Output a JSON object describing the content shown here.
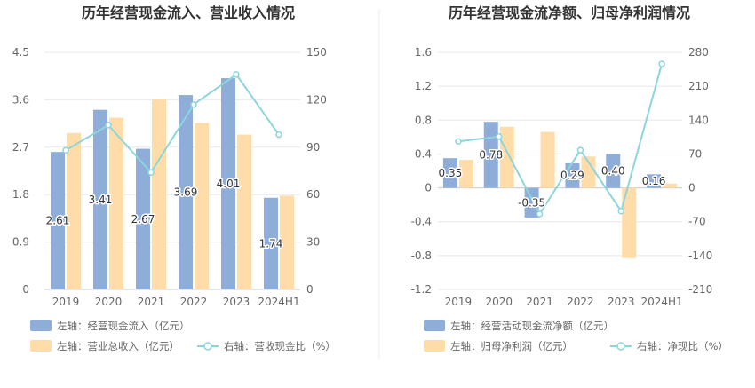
{
  "colors": {
    "bar1": "#8eadd9",
    "bar2": "#ffdca8",
    "line": "#8dd5dc",
    "grid": "#e8e8ee",
    "axis": "#cccccc",
    "divider": "#eeeeee"
  },
  "chart_data": [
    {
      "type": "bar",
      "title": "历年经营现金流入、营业收入情况",
      "categories": [
        "2019",
        "2020",
        "2021",
        "2022",
        "2023",
        "2024H1"
      ],
      "left_axis": {
        "ylim": [
          0,
          4.5
        ],
        "ticks": [
          "0",
          "0.9",
          "1.8",
          "2.7",
          "3.6",
          "4.5"
        ]
      },
      "right_axis": {
        "ylim": [
          0,
          150
        ],
        "ticks": [
          "0",
          "30",
          "60",
          "90",
          "120",
          "150"
        ]
      },
      "series": [
        {
          "name": "左轴：经营现金流入（亿元）",
          "type": "bar",
          "axis": "left",
          "values": [
            2.61,
            3.41,
            2.67,
            3.69,
            4.01,
            1.74
          ],
          "labels": [
            "2.61",
            "3.41",
            "2.67",
            "3.69",
            "4.01",
            "1.74"
          ]
        },
        {
          "name": "左轴：营业总收入（亿元）",
          "type": "bar",
          "axis": "left",
          "values": [
            2.97,
            3.26,
            3.61,
            3.16,
            2.94,
            1.78
          ]
        },
        {
          "name": "右轴：营收现金比（%）",
          "type": "line",
          "axis": "right",
          "values": [
            88,
            104,
            74,
            117,
            136,
            98
          ]
        }
      ],
      "grid": true,
      "legend_position": "bottom-left"
    },
    {
      "type": "bar",
      "title": "历年经营现金流净额、归母净利润情况",
      "categories": [
        "2019",
        "2020",
        "2021",
        "2022",
        "2023",
        "2024H1"
      ],
      "left_axis": {
        "ylim": [
          -1.2,
          1.6
        ],
        "ticks": [
          "-1.2",
          "-0.8",
          "-0.4",
          "0",
          "0.4",
          "0.8",
          "1.2",
          "1.6"
        ]
      },
      "right_axis": {
        "ylim": [
          -210,
          280
        ],
        "ticks": [
          "-210",
          "-140",
          "-70",
          "0",
          "70",
          "140",
          "210",
          "280"
        ]
      },
      "series": [
        {
          "name": "左轴：经营活动现金流净额（亿元）",
          "type": "bar",
          "axis": "left",
          "values": [
            0.35,
            0.78,
            -0.35,
            0.29,
            0.4,
            0.16
          ],
          "labels": [
            "0.35",
            "0.78",
            "-0.35",
            "0.29",
            "0.40",
            "0.16"
          ]
        },
        {
          "name": "左轴：归母净利润（亿元）",
          "type": "bar",
          "axis": "left",
          "values": [
            0.33,
            0.72,
            0.66,
            0.37,
            -0.83,
            0.05
          ]
        },
        {
          "name": "右轴：净现比（%）",
          "type": "line",
          "axis": "right",
          "values": [
            96,
            106,
            -54,
            78,
            -48,
            256
          ]
        }
      ],
      "grid": true,
      "legend_position": "bottom-left"
    }
  ]
}
